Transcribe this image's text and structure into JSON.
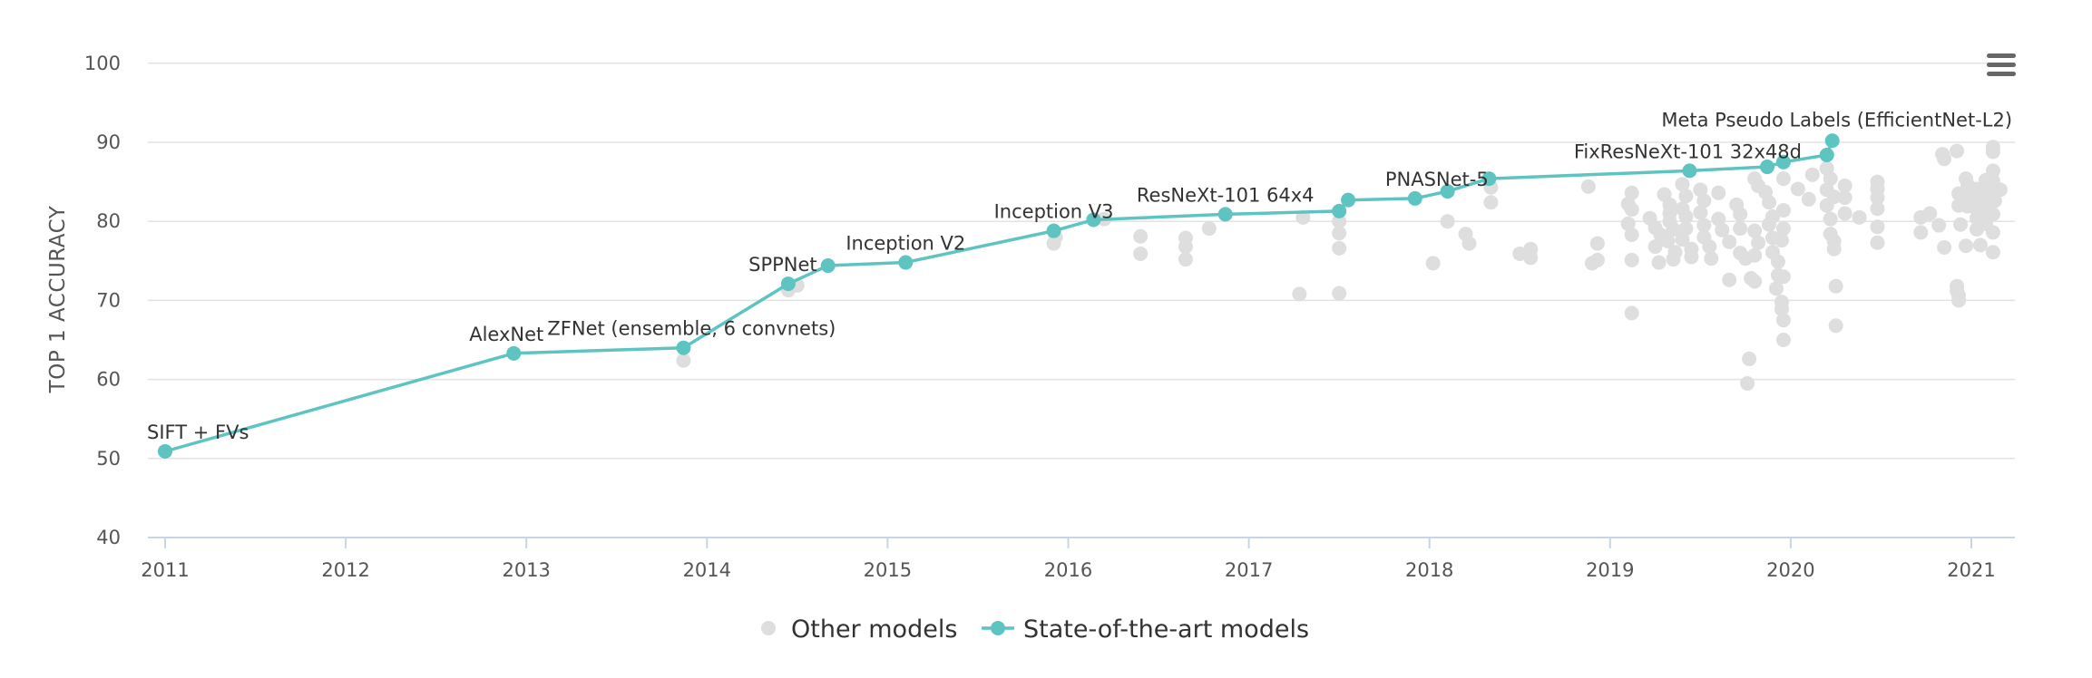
{
  "chart_data": {
    "type": "scatter",
    "title": "",
    "xlabel": "",
    "ylabel": "TOP 1 ACCURACY",
    "xlim": [
      2011,
      2021.25
    ],
    "ylim": [
      40,
      100
    ],
    "x_ticks": [
      "2011",
      "2012",
      "2013",
      "2014",
      "2015",
      "2016",
      "2017",
      "2018",
      "2019",
      "2020",
      "2021"
    ],
    "y_ticks": [
      "40",
      "50",
      "60",
      "70",
      "80",
      "90",
      "100"
    ],
    "grid": "horizontal",
    "legend_position": "bottom-center",
    "colors": {
      "sota": "#5ec4c2",
      "other": "#dedede",
      "axis": "#c8d5e3",
      "grid": "#e3e3e3"
    },
    "legend": [
      "Other models",
      "State-of-the-art models"
    ],
    "series": [
      {
        "name": "State-of-the-art models",
        "style": "line+markers",
        "points": [
          {
            "x": 2011.0,
            "y": 50.9,
            "label": "SIFT + FVs"
          },
          {
            "x": 2012.93,
            "y": 63.3,
            "label": "AlexNet"
          },
          {
            "x": 2013.87,
            "y": 64.0,
            "label": "ZFNet (ensemble, 6 convnets)"
          },
          {
            "x": 2014.45,
            "y": 72.1,
            "label": "SPPNet"
          },
          {
            "x": 2014.67,
            "y": 74.4,
            "label": ""
          },
          {
            "x": 2015.1,
            "y": 74.8,
            "label": "Inception V2"
          },
          {
            "x": 2015.92,
            "y": 78.8,
            "label": "Inception V3"
          },
          {
            "x": 2016.14,
            "y": 80.2,
            "label": ""
          },
          {
            "x": 2016.87,
            "y": 80.9,
            "label": "ResNeXt-101 64x4"
          },
          {
            "x": 2017.5,
            "y": 81.3,
            "label": ""
          },
          {
            "x": 2017.55,
            "y": 82.7,
            "label": ""
          },
          {
            "x": 2017.92,
            "y": 82.9,
            "label": "PNASNet-5"
          },
          {
            "x": 2018.1,
            "y": 83.8,
            "label": ""
          },
          {
            "x": 2018.33,
            "y": 85.4,
            "label": ""
          },
          {
            "x": 2019.44,
            "y": 86.4,
            "label": "FixResNeXt-101 32x48d"
          },
          {
            "x": 2019.87,
            "y": 86.9,
            "label": ""
          },
          {
            "x": 2019.96,
            "y": 87.5,
            "label": ""
          },
          {
            "x": 2020.2,
            "y": 88.4,
            "label": ""
          },
          {
            "x": 2020.23,
            "y": 90.2,
            "label": "Meta Pseudo Labels (EfficientNet-L2)"
          }
        ]
      },
      {
        "name": "Other models",
        "style": "markers",
        "points": [
          {
            "x": 2013.87,
            "y": 62.4
          },
          {
            "x": 2014.45,
            "y": 71.3
          },
          {
            "x": 2014.5,
            "y": 71.9
          },
          {
            "x": 2015.92,
            "y": 77.2
          },
          {
            "x": 2015.93,
            "y": 78.0
          },
          {
            "x": 2016.2,
            "y": 80.3
          },
          {
            "x": 2016.4,
            "y": 78.1
          },
          {
            "x": 2016.4,
            "y": 75.9
          },
          {
            "x": 2016.65,
            "y": 77.9
          },
          {
            "x": 2016.65,
            "y": 76.8
          },
          {
            "x": 2016.65,
            "y": 75.2
          },
          {
            "x": 2016.78,
            "y": 79.1
          },
          {
            "x": 2017.3,
            "y": 80.5
          },
          {
            "x": 2017.28,
            "y": 70.8
          },
          {
            "x": 2017.5,
            "y": 80.0
          },
          {
            "x": 2017.5,
            "y": 78.5
          },
          {
            "x": 2017.5,
            "y": 76.6
          },
          {
            "x": 2017.5,
            "y": 70.9
          },
          {
            "x": 2018.02,
            "y": 74.7
          },
          {
            "x": 2018.1,
            "y": 80.0
          },
          {
            "x": 2018.2,
            "y": 78.4
          },
          {
            "x": 2018.22,
            "y": 77.2
          },
          {
            "x": 2018.34,
            "y": 84.3
          },
          {
            "x": 2018.34,
            "y": 82.4
          },
          {
            "x": 2018.5,
            "y": 75.9
          },
          {
            "x": 2018.56,
            "y": 76.5
          },
          {
            "x": 2018.56,
            "y": 75.4
          },
          {
            "x": 2018.88,
            "y": 84.4
          },
          {
            "x": 2018.93,
            "y": 77.2
          },
          {
            "x": 2018.93,
            "y": 75.1
          },
          {
            "x": 2018.9,
            "y": 74.7
          },
          {
            "x": 2019.1,
            "y": 82.2
          },
          {
            "x": 2019.12,
            "y": 83.6
          },
          {
            "x": 2019.12,
            "y": 81.5
          },
          {
            "x": 2019.1,
            "y": 79.7
          },
          {
            "x": 2019.12,
            "y": 78.3
          },
          {
            "x": 2019.12,
            "y": 75.1
          },
          {
            "x": 2019.12,
            "y": 68.4
          },
          {
            "x": 2019.22,
            "y": 80.4
          },
          {
            "x": 2019.25,
            "y": 79.2
          },
          {
            "x": 2019.28,
            "y": 78.3
          },
          {
            "x": 2019.25,
            "y": 76.8
          },
          {
            "x": 2019.27,
            "y": 74.8
          },
          {
            "x": 2019.3,
            "y": 83.4
          },
          {
            "x": 2019.33,
            "y": 82.1
          },
          {
            "x": 2019.33,
            "y": 81.0
          },
          {
            "x": 2019.33,
            "y": 80.0
          },
          {
            "x": 2019.35,
            "y": 79.0
          },
          {
            "x": 2019.32,
            "y": 77.5
          },
          {
            "x": 2019.36,
            "y": 76.1
          },
          {
            "x": 2019.35,
            "y": 75.2
          },
          {
            "x": 2019.4,
            "y": 84.7
          },
          {
            "x": 2019.42,
            "y": 83.2
          },
          {
            "x": 2019.4,
            "y": 81.6
          },
          {
            "x": 2019.42,
            "y": 80.6
          },
          {
            "x": 2019.42,
            "y": 79.1
          },
          {
            "x": 2019.4,
            "y": 77.7
          },
          {
            "x": 2019.45,
            "y": 76.5
          },
          {
            "x": 2019.45,
            "y": 75.5
          },
          {
            "x": 2019.5,
            "y": 84.0
          },
          {
            "x": 2019.52,
            "y": 82.6
          },
          {
            "x": 2019.5,
            "y": 81.1
          },
          {
            "x": 2019.52,
            "y": 79.5
          },
          {
            "x": 2019.52,
            "y": 78.0
          },
          {
            "x": 2019.55,
            "y": 76.8
          },
          {
            "x": 2019.56,
            "y": 75.3
          },
          {
            "x": 2019.6,
            "y": 83.6
          },
          {
            "x": 2019.6,
            "y": 80.3
          },
          {
            "x": 2019.62,
            "y": 78.9
          },
          {
            "x": 2019.66,
            "y": 77.4
          },
          {
            "x": 2019.66,
            "y": 72.6
          },
          {
            "x": 2019.7,
            "y": 82.1
          },
          {
            "x": 2019.72,
            "y": 80.9
          },
          {
            "x": 2019.72,
            "y": 79.1
          },
          {
            "x": 2019.72,
            "y": 76.0
          },
          {
            "x": 2019.75,
            "y": 75.3
          },
          {
            "x": 2019.8,
            "y": 85.4
          },
          {
            "x": 2019.82,
            "y": 84.5
          },
          {
            "x": 2019.8,
            "y": 78.8
          },
          {
            "x": 2019.82,
            "y": 77.3
          },
          {
            "x": 2019.8,
            "y": 75.7
          },
          {
            "x": 2019.78,
            "y": 72.8
          },
          {
            "x": 2019.8,
            "y": 72.4
          },
          {
            "x": 2019.77,
            "y": 62.6
          },
          {
            "x": 2019.76,
            "y": 59.5
          },
          {
            "x": 2019.86,
            "y": 83.7
          },
          {
            "x": 2019.88,
            "y": 82.4
          },
          {
            "x": 2019.9,
            "y": 80.6
          },
          {
            "x": 2019.88,
            "y": 79.6
          },
          {
            "x": 2019.9,
            "y": 77.9
          },
          {
            "x": 2019.9,
            "y": 76.1
          },
          {
            "x": 2019.93,
            "y": 74.9
          },
          {
            "x": 2019.93,
            "y": 73.2
          },
          {
            "x": 2019.92,
            "y": 71.5
          },
          {
            "x": 2019.96,
            "y": 85.4
          },
          {
            "x": 2019.96,
            "y": 81.4
          },
          {
            "x": 2019.96,
            "y": 79.1
          },
          {
            "x": 2019.95,
            "y": 77.6
          },
          {
            "x": 2019.96,
            "y": 73.0
          },
          {
            "x": 2019.95,
            "y": 69.8
          },
          {
            "x": 2019.95,
            "y": 68.9
          },
          {
            "x": 2019.96,
            "y": 67.5
          },
          {
            "x": 2019.96,
            "y": 65.0
          },
          {
            "x": 2020.04,
            "y": 84.1
          },
          {
            "x": 2020.1,
            "y": 82.8
          },
          {
            "x": 2020.12,
            "y": 85.9
          },
          {
            "x": 2020.2,
            "y": 86.7
          },
          {
            "x": 2020.22,
            "y": 85.4
          },
          {
            "x": 2020.2,
            "y": 84.0
          },
          {
            "x": 2020.24,
            "y": 83.1
          },
          {
            "x": 2020.2,
            "y": 82.0
          },
          {
            "x": 2020.22,
            "y": 80.3
          },
          {
            "x": 2020.22,
            "y": 78.4
          },
          {
            "x": 2020.24,
            "y": 77.5
          },
          {
            "x": 2020.24,
            "y": 76.5
          },
          {
            "x": 2020.25,
            "y": 71.8
          },
          {
            "x": 2020.25,
            "y": 66.8
          },
          {
            "x": 2020.3,
            "y": 84.5
          },
          {
            "x": 2020.3,
            "y": 83.0
          },
          {
            "x": 2020.3,
            "y": 81.0
          },
          {
            "x": 2020.38,
            "y": 80.5
          },
          {
            "x": 2020.48,
            "y": 85.0
          },
          {
            "x": 2020.48,
            "y": 84.1
          },
          {
            "x": 2020.48,
            "y": 83.0
          },
          {
            "x": 2020.48,
            "y": 81.6
          },
          {
            "x": 2020.48,
            "y": 79.3
          },
          {
            "x": 2020.48,
            "y": 77.3
          },
          {
            "x": 2020.72,
            "y": 78.6
          },
          {
            "x": 2020.72,
            "y": 80.5
          },
          {
            "x": 2020.77,
            "y": 81.0
          },
          {
            "x": 2020.82,
            "y": 79.5
          },
          {
            "x": 2020.85,
            "y": 76.7
          },
          {
            "x": 2020.84,
            "y": 88.5
          },
          {
            "x": 2020.85,
            "y": 87.9
          },
          {
            "x": 2020.92,
            "y": 88.9
          },
          {
            "x": 2020.93,
            "y": 83.5
          },
          {
            "x": 2020.93,
            "y": 82.0
          },
          {
            "x": 2020.94,
            "y": 79.6
          },
          {
            "x": 2020.92,
            "y": 71.8
          },
          {
            "x": 2020.92,
            "y": 71.2
          },
          {
            "x": 2020.93,
            "y": 70.6
          },
          {
            "x": 2020.93,
            "y": 70.0
          },
          {
            "x": 2020.97,
            "y": 85.4
          },
          {
            "x": 2020.98,
            "y": 84.6
          },
          {
            "x": 2020.98,
            "y": 83.2
          },
          {
            "x": 2020.98,
            "y": 81.9
          },
          {
            "x": 2020.97,
            "y": 76.9
          },
          {
            "x": 2021.03,
            "y": 84.1
          },
          {
            "x": 2021.03,
            "y": 83.1
          },
          {
            "x": 2021.03,
            "y": 81.6
          },
          {
            "x": 2021.03,
            "y": 80.4
          },
          {
            "x": 2021.03,
            "y": 79.0
          },
          {
            "x": 2021.05,
            "y": 77.0
          },
          {
            "x": 2021.08,
            "y": 85.2
          },
          {
            "x": 2021.08,
            "y": 83.9
          },
          {
            "x": 2021.08,
            "y": 82.3
          },
          {
            "x": 2021.08,
            "y": 81.0
          },
          {
            "x": 2021.08,
            "y": 79.7
          },
          {
            "x": 2021.12,
            "y": 89.4
          },
          {
            "x": 2021.12,
            "y": 88.8
          },
          {
            "x": 2021.12,
            "y": 86.4
          },
          {
            "x": 2021.12,
            "y": 85.1
          },
          {
            "x": 2021.13,
            "y": 83.6
          },
          {
            "x": 2021.13,
            "y": 82.6
          },
          {
            "x": 2021.12,
            "y": 80.9
          },
          {
            "x": 2021.12,
            "y": 78.6
          },
          {
            "x": 2021.12,
            "y": 76.1
          },
          {
            "x": 2021.16,
            "y": 84.0
          }
        ]
      }
    ]
  },
  "menu": {
    "icon": "hamburger-menu-icon"
  }
}
